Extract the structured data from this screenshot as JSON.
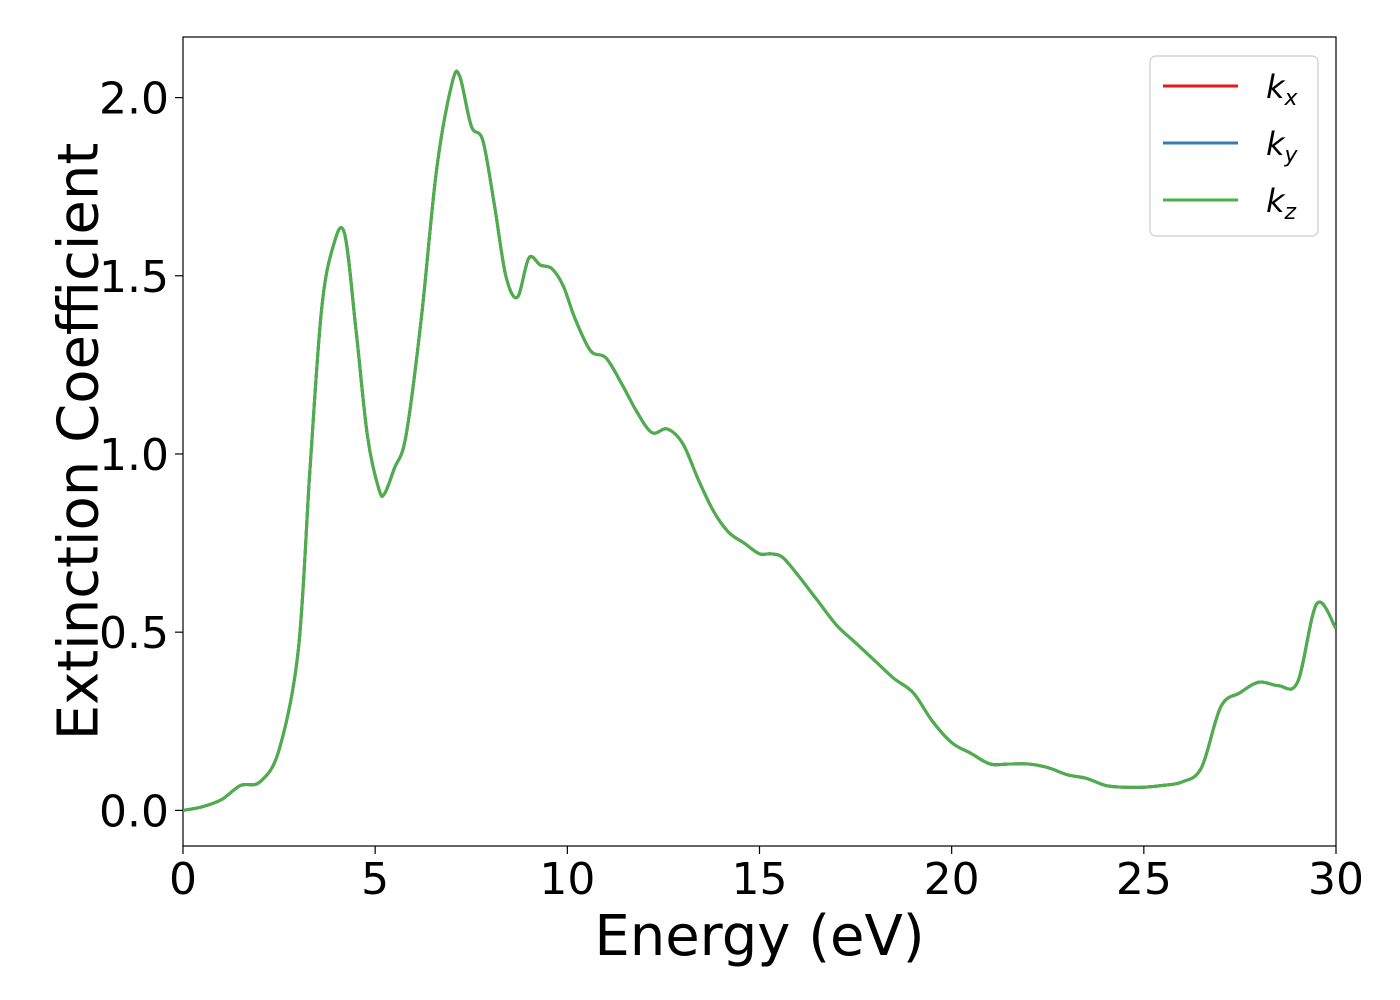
{
  "chart_data": {
    "type": "line",
    "xlabel": "Energy (eV)",
    "ylabel": "Extinction Coefficient",
    "xlim": [
      0,
      30
    ],
    "ylim": [
      -0.1,
      2.17
    ],
    "xticks": [
      0,
      5,
      10,
      15,
      20,
      25,
      30
    ],
    "xtick_labels": [
      "0",
      "5",
      "10",
      "15",
      "20",
      "25",
      "30"
    ],
    "yticks": [
      0.0,
      0.5,
      1.0,
      1.5,
      2.0
    ],
    "ytick_labels": [
      "0.0",
      "0.5",
      "1.0",
      "1.5",
      "2.0"
    ],
    "grid": false,
    "legend_position": "top-right",
    "series": [
      {
        "name": "k_x",
        "label_base": "k",
        "label_sub": "x",
        "color": "#e41a1c"
      },
      {
        "name": "k_y",
        "label_base": "k",
        "label_sub": "y",
        "color": "#377eb8"
      },
      {
        "name": "k_z",
        "label_base": "k",
        "label_sub": "z",
        "color": "#4daf4a"
      }
    ],
    "shared_values": {
      "x": [
        0,
        0.5,
        1.0,
        1.5,
        2.0,
        2.5,
        3.0,
        3.3,
        3.6,
        3.9,
        4.2,
        4.5,
        4.8,
        5.1,
        5.25,
        5.5,
        5.8,
        6.2,
        6.6,
        7.0,
        7.2,
        7.5,
        7.8,
        8.1,
        8.4,
        8.7,
        9.0,
        9.3,
        9.6,
        9.9,
        10.2,
        10.6,
        11.0,
        11.4,
        11.8,
        12.2,
        12.6,
        13.0,
        13.4,
        13.8,
        14.2,
        14.6,
        15.0,
        15.3,
        15.6,
        16.0,
        16.5,
        17.0,
        17.5,
        18.0,
        18.5,
        19.0,
        19.5,
        20.0,
        20.5,
        21.0,
        21.5,
        22.0,
        22.5,
        23.0,
        23.5,
        24.0,
        24.5,
        25.0,
        25.5,
        26.0,
        26.5,
        27.0,
        27.5,
        28.0,
        28.5,
        29.0,
        29.5,
        30.0
      ],
      "y": [
        0.0,
        0.01,
        0.03,
        0.07,
        0.08,
        0.17,
        0.45,
        0.95,
        1.4,
        1.58,
        1.62,
        1.35,
        1.05,
        0.9,
        0.89,
        0.96,
        1.05,
        1.38,
        1.8,
        2.04,
        2.06,
        1.92,
        1.88,
        1.7,
        1.5,
        1.44,
        1.55,
        1.53,
        1.52,
        1.47,
        1.38,
        1.29,
        1.27,
        1.2,
        1.12,
        1.06,
        1.07,
        1.03,
        0.93,
        0.84,
        0.78,
        0.75,
        0.72,
        0.72,
        0.71,
        0.66,
        0.59,
        0.52,
        0.47,
        0.42,
        0.37,
        0.33,
        0.25,
        0.19,
        0.16,
        0.13,
        0.13,
        0.13,
        0.12,
        0.1,
        0.09,
        0.07,
        0.065,
        0.065,
        0.07,
        0.08,
        0.12,
        0.29,
        0.33,
        0.36,
        0.35,
        0.36,
        0.58,
        0.51
      ]
    }
  }
}
